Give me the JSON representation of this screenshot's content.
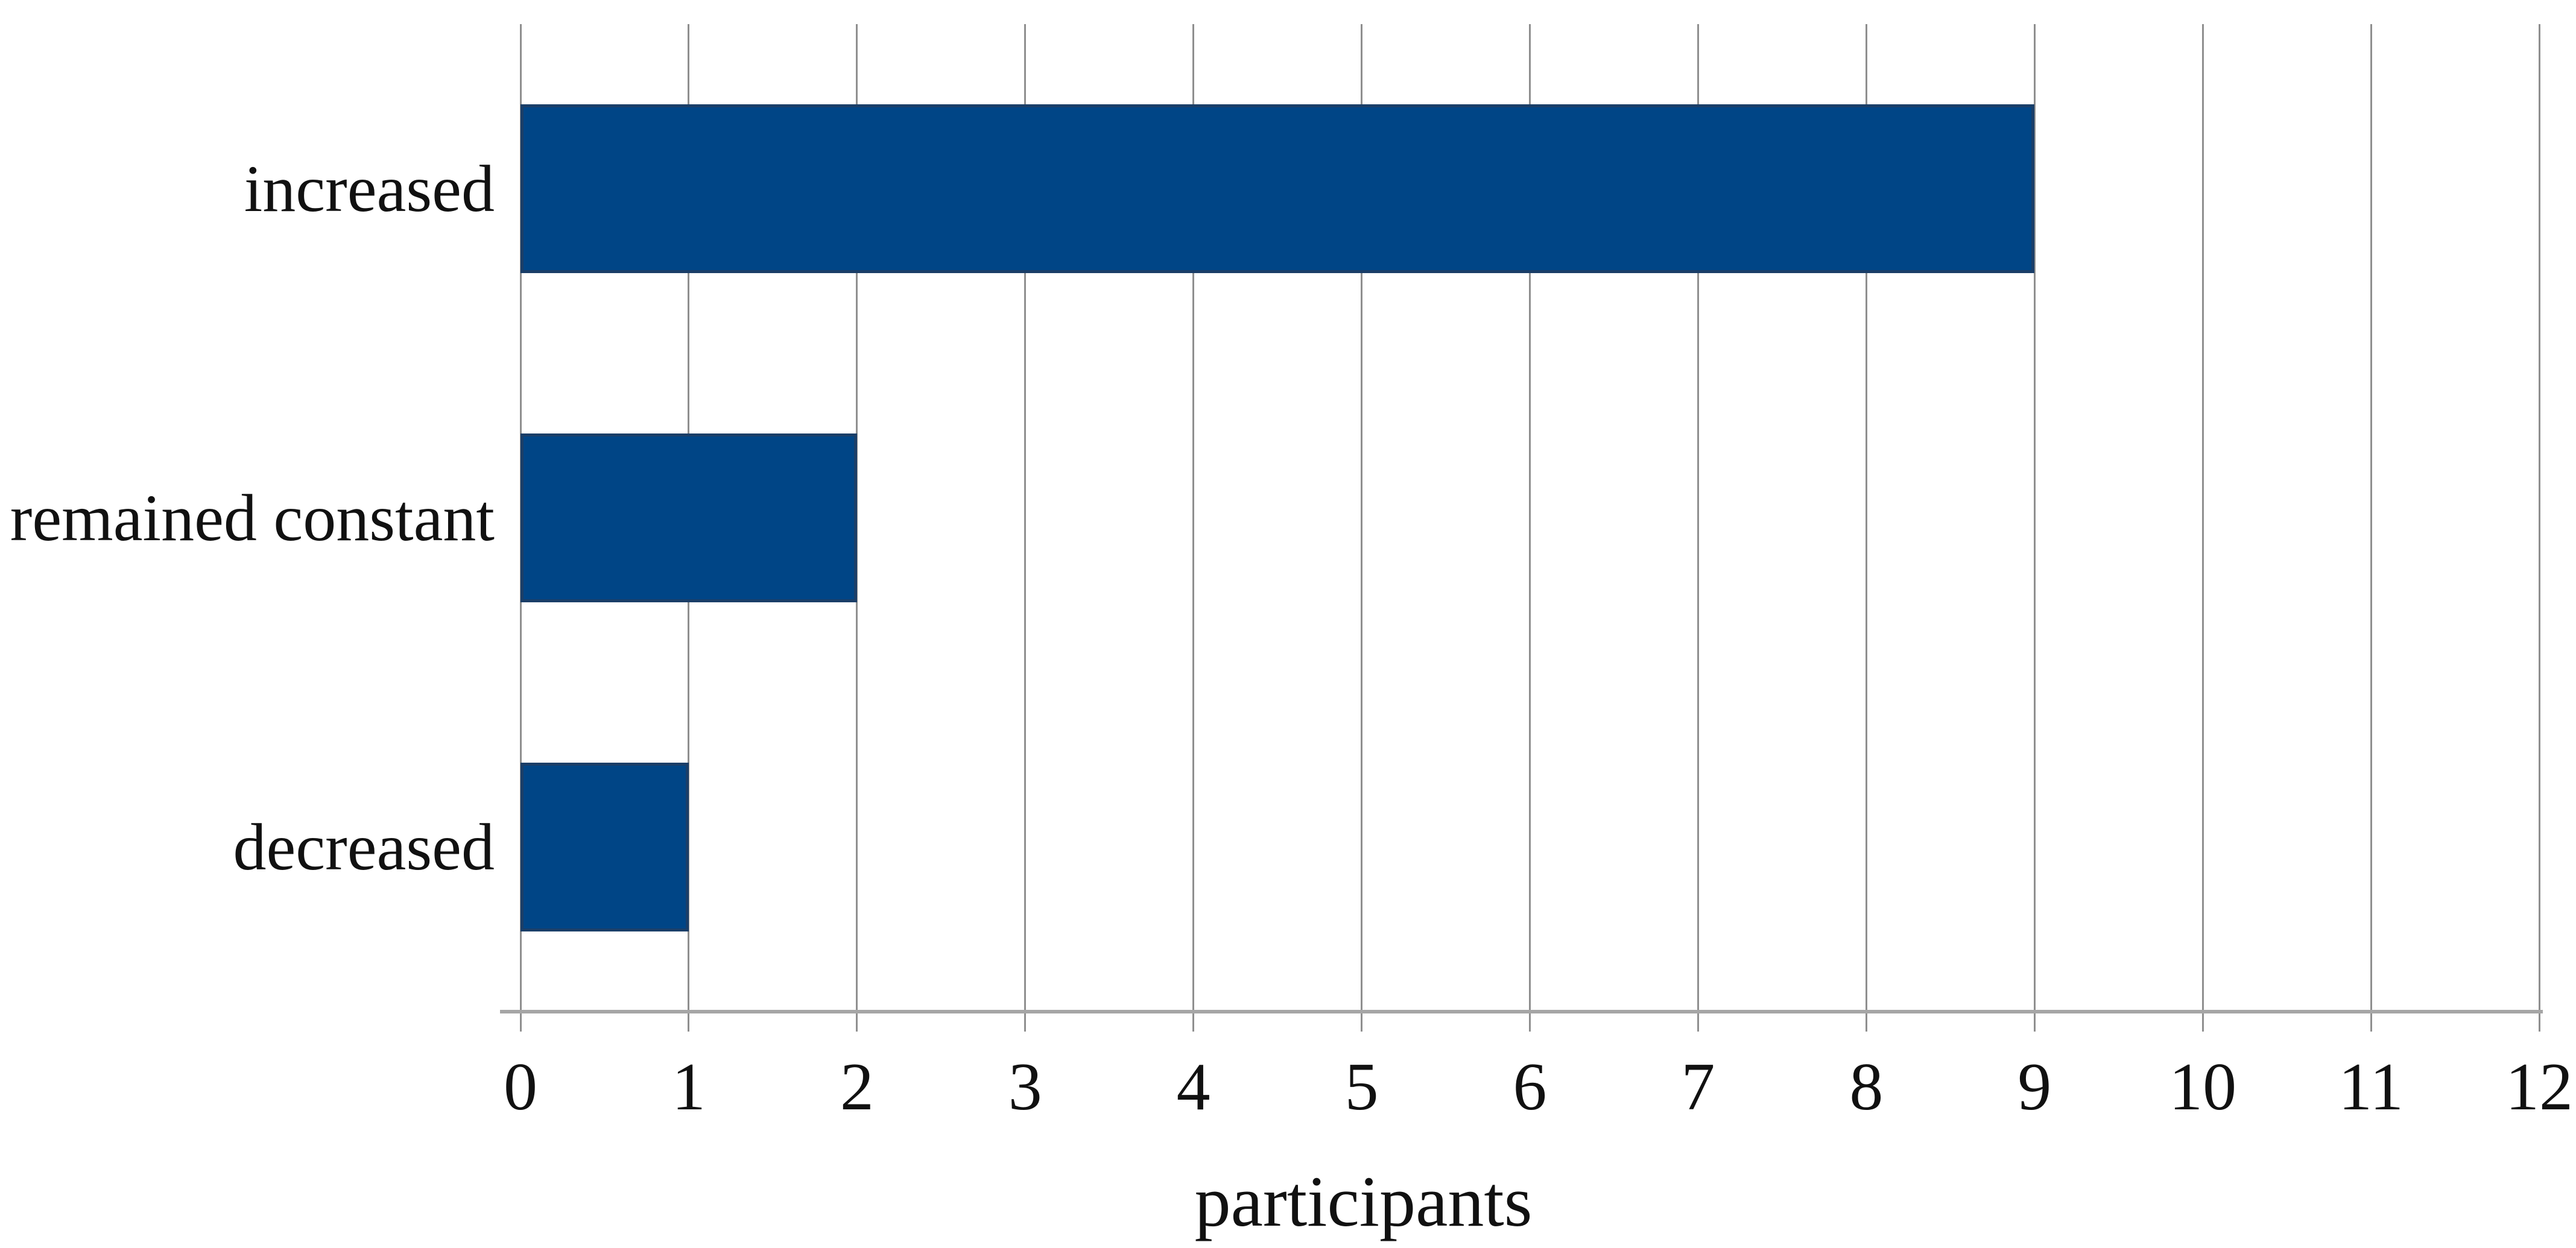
{
  "chart_data": {
    "type": "bar",
    "orientation": "horizontal",
    "title": "",
    "xlabel": "participants",
    "ylabel": "",
    "categories": [
      "increased",
      "remained constant",
      "decreased"
    ],
    "values": [
      9,
      2,
      1
    ],
    "xlim": [
      0,
      12
    ],
    "xticks": [
      "0",
      "1",
      "2",
      "3",
      "4",
      "5",
      "6",
      "7",
      "8",
      "9",
      "10",
      "11",
      "12"
    ],
    "grid": "vertical-gridlines-on",
    "legend": "none",
    "colors": {
      "bar": "#004586",
      "bar_border": "#1a3e68",
      "gridline": "#8f8f8f",
      "axis_line": "#a6a6a6",
      "text": "#111111",
      "background": "#ffffff"
    }
  }
}
